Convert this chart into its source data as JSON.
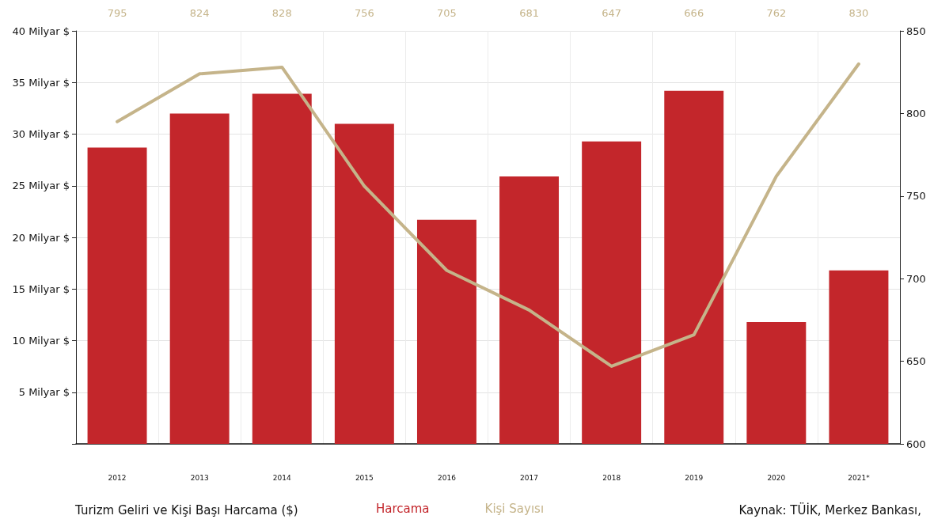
{
  "chart_data": {
    "type": "bar",
    "title": "Turizm Geliri ve Kişi Başı Harcama ($)",
    "categories": [
      "2012",
      "2013",
      "2014",
      "2015",
      "2016",
      "2017",
      "2018",
      "2019",
      "2020",
      "2021*"
    ],
    "series": [
      {
        "name": "Harcama",
        "color": "#c3262b",
        "values": [
          28.7,
          32.0,
          33.9,
          31.0,
          21.7,
          25.9,
          29.3,
          34.2,
          11.8,
          16.8
        ]
      },
      {
        "name": "Kişi Sayısı",
        "type": "line",
        "axis": "y2",
        "color": "#c5b48a",
        "data_labels": true,
        "values": [
          795,
          824,
          828,
          756,
          705,
          681,
          647,
          666,
          762,
          830
        ]
      }
    ],
    "ylim": [
      0,
      40
    ],
    "yticks": [
      {
        "value": 0,
        "label": null
      },
      {
        "value": 5,
        "label": "5 Milyar $"
      },
      {
        "value": 10,
        "label": "10 Milyar $"
      },
      {
        "value": 15,
        "label": "15 Milyar $"
      },
      {
        "value": 20,
        "label": "20 Milyar $"
      },
      {
        "value": 25,
        "label": "25 Milyar $"
      },
      {
        "value": 30,
        "label": "30 Milyar $"
      },
      {
        "value": 35,
        "label": "35 Milyar $"
      },
      {
        "value": 40,
        "label": "40 Milyar $"
      }
    ],
    "y2lim": [
      600,
      850
    ],
    "y2ticks": [
      600,
      650,
      700,
      750,
      800,
      850
    ],
    "grid": true,
    "legend": "bottom",
    "marker": "none",
    "line_style": "solid",
    "annotations": [
      "Kaynak: TÜİK, Merkez Bankası,"
    ]
  }
}
